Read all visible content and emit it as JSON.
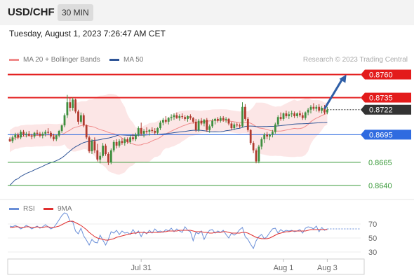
{
  "header": {
    "pair": "USD/CHF",
    "timeframe": "30 MIN"
  },
  "timestamp": "Tuesday, August 1, 2023 7:26:47 AM CET",
  "credit": "Research © 2023 Trading Central",
  "legend": [
    {
      "label": "MA 20 + Bollinger Bands",
      "color": "#f08c8c"
    },
    {
      "label": "MA 50",
      "color": "#2f5597"
    }
  ],
  "rsi_legend": [
    {
      "label": "RSI",
      "color": "#6a8fd8"
    },
    {
      "label": "9MA",
      "color": "#e03030"
    }
  ],
  "chart_data": [
    {
      "type": "candlestick",
      "title": "USD/CHF",
      "ylim": [
        0.8624,
        0.8768
      ],
      "levels": [
        {
          "value": 0.876,
          "label": "0.8760",
          "kind": "resistance",
          "color": "#e31b1b"
        },
        {
          "value": 0.8735,
          "label": "0.8735",
          "kind": "resistance",
          "color": "#e31b1b"
        },
        {
          "value": 0.8722,
          "label": "0.8722",
          "kind": "last",
          "color": "#333333"
        },
        {
          "value": 0.8695,
          "label": "0.8695",
          "kind": "pivot",
          "color": "#2f6be0"
        },
        {
          "value": 0.8665,
          "label": "0.8665",
          "kind": "support",
          "color": "#3a9a3a"
        },
        {
          "value": 0.864,
          "label": "0.8640",
          "kind": "support",
          "color": "#3a9a3a"
        }
      ],
      "x_ticks": [
        {
          "index": 48,
          "label": "Jul 31"
        },
        {
          "index": 100,
          "label": "Aug 1"
        },
        {
          "index": 116,
          "label": "Aug 3"
        }
      ],
      "forecast_arrow": {
        "from_index": 115,
        "from_value": 0.8723,
        "to_index": 123,
        "to_value": 0.876
      },
      "ohlc": [
        [
          0.869,
          0.8692,
          0.8687,
          0.8688
        ],
        [
          0.8688,
          0.8694,
          0.8686,
          0.8692
        ],
        [
          0.8692,
          0.8697,
          0.8689,
          0.8695
        ],
        [
          0.8695,
          0.8697,
          0.869,
          0.8692
        ],
        [
          0.8692,
          0.87,
          0.869,
          0.8698
        ],
        [
          0.8698,
          0.87,
          0.8693,
          0.8695
        ],
        [
          0.8695,
          0.8698,
          0.8692,
          0.8696
        ],
        [
          0.8696,
          0.8699,
          0.8693,
          0.8694
        ],
        [
          0.8694,
          0.8696,
          0.869,
          0.8693
        ],
        [
          0.8693,
          0.8698,
          0.8691,
          0.8697
        ],
        [
          0.8697,
          0.87,
          0.8694,
          0.8696
        ],
        [
          0.8696,
          0.8698,
          0.8692,
          0.8694
        ],
        [
          0.8694,
          0.8698,
          0.8691,
          0.8696
        ],
        [
          0.8696,
          0.87,
          0.8693,
          0.8698
        ],
        [
          0.8698,
          0.8702,
          0.8695,
          0.8697
        ],
        [
          0.8697,
          0.8699,
          0.8691,
          0.8693
        ],
        [
          0.8693,
          0.8696,
          0.8688,
          0.869
        ],
        [
          0.869,
          0.8695,
          0.8688,
          0.8694
        ],
        [
          0.8694,
          0.87,
          0.8692,
          0.8699
        ],
        [
          0.8699,
          0.8706,
          0.8697,
          0.8705
        ],
        [
          0.8705,
          0.8718,
          0.8703,
          0.8716
        ],
        [
          0.8716,
          0.8738,
          0.8713,
          0.873
        ],
        [
          0.873,
          0.8735,
          0.872,
          0.8724
        ],
        [
          0.8724,
          0.8735,
          0.8721,
          0.8733
        ],
        [
          0.8733,
          0.8734,
          0.8718,
          0.872
        ],
        [
          0.872,
          0.8722,
          0.8706,
          0.8709
        ],
        [
          0.8709,
          0.8719,
          0.8707,
          0.8716
        ],
        [
          0.8716,
          0.8718,
          0.8703,
          0.8705
        ],
        [
          0.8705,
          0.8706,
          0.869,
          0.8692
        ],
        [
          0.8692,
          0.8694,
          0.8675,
          0.8677
        ],
        [
          0.8677,
          0.869,
          0.8674,
          0.8688
        ],
        [
          0.8688,
          0.8692,
          0.8675,
          0.8678
        ],
        [
          0.8678,
          0.8685,
          0.8666,
          0.8668
        ],
        [
          0.8668,
          0.8676,
          0.8664,
          0.8672
        ],
        [
          0.8672,
          0.8686,
          0.867,
          0.8683
        ],
        [
          0.8683,
          0.8685,
          0.8672,
          0.8674
        ],
        [
          0.8674,
          0.8676,
          0.8662,
          0.8665
        ],
        [
          0.8665,
          0.868,
          0.8663,
          0.8678
        ],
        [
          0.8678,
          0.8689,
          0.8676,
          0.8687
        ],
        [
          0.8687,
          0.869,
          0.868,
          0.8683
        ],
        [
          0.8683,
          0.869,
          0.8681,
          0.8688
        ],
        [
          0.8688,
          0.8691,
          0.8684,
          0.8686
        ],
        [
          0.8686,
          0.8692,
          0.8683,
          0.869
        ],
        [
          0.869,
          0.8692,
          0.8685,
          0.8687
        ],
        [
          0.8687,
          0.8694,
          0.8685,
          0.8692
        ],
        [
          0.8692,
          0.8696,
          0.8688,
          0.869
        ],
        [
          0.869,
          0.8697,
          0.8688,
          0.8695
        ],
        [
          0.8695,
          0.8704,
          0.8693,
          0.8702
        ],
        [
          0.8702,
          0.8708,
          0.8694,
          0.8696
        ],
        [
          0.8696,
          0.8701,
          0.8692,
          0.8699
        ],
        [
          0.8699,
          0.8703,
          0.8696,
          0.8698
        ],
        [
          0.8698,
          0.8701,
          0.8694,
          0.87
        ],
        [
          0.87,
          0.8703,
          0.8697,
          0.8699
        ],
        [
          0.8699,
          0.8702,
          0.8695,
          0.8697
        ],
        [
          0.8697,
          0.8703,
          0.8695,
          0.8702
        ],
        [
          0.8702,
          0.871,
          0.87,
          0.8708
        ],
        [
          0.8708,
          0.8713,
          0.8705,
          0.8711
        ],
        [
          0.8711,
          0.8715,
          0.8707,
          0.8709
        ],
        [
          0.8709,
          0.8714,
          0.8706,
          0.8713
        ],
        [
          0.8713,
          0.8717,
          0.871,
          0.8714
        ],
        [
          0.8714,
          0.8718,
          0.8711,
          0.8716
        ],
        [
          0.8716,
          0.8719,
          0.8712,
          0.8713
        ],
        [
          0.8713,
          0.8717,
          0.871,
          0.8715
        ],
        [
          0.8715,
          0.8718,
          0.8712,
          0.8714
        ],
        [
          0.8714,
          0.8716,
          0.871,
          0.8712
        ],
        [
          0.8712,
          0.8716,
          0.8709,
          0.8715
        ],
        [
          0.8715,
          0.8717,
          0.8711,
          0.8713
        ],
        [
          0.8713,
          0.8714,
          0.8707,
          0.8709
        ],
        [
          0.8709,
          0.8712,
          0.8698,
          0.87
        ],
        [
          0.87,
          0.8712,
          0.8698,
          0.871
        ],
        [
          0.871,
          0.8713,
          0.8705,
          0.8707
        ],
        [
          0.8707,
          0.8712,
          0.8704,
          0.8711
        ],
        [
          0.8711,
          0.8713,
          0.8698,
          0.87
        ],
        [
          0.87,
          0.8706,
          0.8697,
          0.8704
        ],
        [
          0.8704,
          0.8712,
          0.8702,
          0.871
        ],
        [
          0.871,
          0.8713,
          0.8706,
          0.8712
        ],
        [
          0.8712,
          0.8714,
          0.8708,
          0.871
        ],
        [
          0.871,
          0.8715,
          0.8708,
          0.8713
        ],
        [
          0.8713,
          0.8715,
          0.8709,
          0.8711
        ],
        [
          0.8711,
          0.8714,
          0.8708,
          0.8712
        ],
        [
          0.8712,
          0.8713,
          0.8705,
          0.8707
        ],
        [
          0.8707,
          0.8709,
          0.87,
          0.8702
        ],
        [
          0.8702,
          0.8708,
          0.87,
          0.8706
        ],
        [
          0.8706,
          0.8708,
          0.8703,
          0.8705
        ],
        [
          0.8705,
          0.8707,
          0.8702,
          0.8704
        ],
        [
          0.8704,
          0.873,
          0.8703,
          0.8725
        ],
        [
          0.8725,
          0.8728,
          0.871,
          0.8712
        ],
        [
          0.8712,
          0.8714,
          0.8698,
          0.87
        ],
        [
          0.87,
          0.8701,
          0.8684,
          0.8686
        ],
        [
          0.8686,
          0.8688,
          0.8675,
          0.8678
        ],
        [
          0.8678,
          0.868,
          0.8664,
          0.8666
        ],
        [
          0.8666,
          0.8684,
          0.8664,
          0.8682
        ],
        [
          0.8682,
          0.8692,
          0.8679,
          0.869
        ],
        [
          0.869,
          0.8697,
          0.8686,
          0.8695
        ],
        [
          0.8695,
          0.8698,
          0.869,
          0.8693
        ],
        [
          0.8693,
          0.8696,
          0.8689,
          0.8695
        ],
        [
          0.8695,
          0.87,
          0.8692,
          0.8698
        ],
        [
          0.8698,
          0.8708,
          0.8696,
          0.8706
        ],
        [
          0.8706,
          0.8716,
          0.8704,
          0.8714
        ],
        [
          0.8714,
          0.8719,
          0.871,
          0.8712
        ],
        [
          0.8712,
          0.8719,
          0.871,
          0.8718
        ],
        [
          0.8718,
          0.8721,
          0.8713,
          0.8715
        ],
        [
          0.8715,
          0.872,
          0.8712,
          0.8717
        ],
        [
          0.8717,
          0.8721,
          0.8714,
          0.8718
        ],
        [
          0.8718,
          0.872,
          0.8713,
          0.8715
        ],
        [
          0.8715,
          0.8719,
          0.8713,
          0.8718
        ],
        [
          0.8718,
          0.8721,
          0.8714,
          0.8716
        ],
        [
          0.8716,
          0.8719,
          0.8711,
          0.8713
        ],
        [
          0.8713,
          0.872,
          0.8711,
          0.8719
        ],
        [
          0.8719,
          0.8724,
          0.8716,
          0.8722
        ],
        [
          0.8722,
          0.8727,
          0.8718,
          0.8725
        ],
        [
          0.8725,
          0.8729,
          0.8721,
          0.8723
        ],
        [
          0.8723,
          0.8727,
          0.872,
          0.8725
        ],
        [
          0.8725,
          0.8728,
          0.8719,
          0.8721
        ],
        [
          0.8721,
          0.8726,
          0.8718,
          0.8724
        ],
        [
          0.8724,
          0.8727,
          0.8717,
          0.8719
        ],
        [
          0.8719,
          0.8725,
          0.8717,
          0.8722
        ]
      ]
    },
    {
      "type": "line",
      "title": "RSI",
      "ylim": [
        20,
        80
      ],
      "y_ticks": [
        70,
        50,
        30
      ],
      "series": [
        {
          "name": "RSI",
          "color": "#6a8fd8",
          "values": [
            67,
            66,
            68,
            66,
            63,
            65,
            68,
            66,
            63,
            65,
            67,
            64,
            66,
            69,
            66,
            63,
            65,
            70,
            76,
            82,
            86,
            84,
            74,
            73,
            60,
            56,
            64,
            53,
            47,
            40,
            48,
            44,
            43,
            54,
            47,
            40,
            48,
            59,
            57,
            61,
            55,
            60,
            57,
            58,
            55,
            62,
            56,
            60,
            52,
            59,
            56,
            61,
            57,
            63,
            59,
            60,
            58,
            62,
            60,
            64,
            59,
            63,
            60,
            58,
            66,
            61,
            59,
            46,
            58,
            56,
            60,
            48,
            56,
            61,
            62,
            57,
            60,
            58,
            61,
            55,
            50,
            57,
            54,
            57,
            62,
            65,
            52,
            48,
            41,
            35,
            46,
            52,
            55,
            49,
            52,
            58,
            63,
            64,
            57,
            62,
            59,
            61,
            60,
            61,
            59,
            60,
            62,
            57,
            64,
            66,
            65,
            63,
            67,
            59,
            65,
            61,
            63
          ]
        },
        {
          "name": "9MA",
          "color": "#e03030",
          "values": [
            65,
            65,
            66,
            66,
            65,
            65,
            66,
            66,
            65,
            65,
            66,
            65,
            65,
            66,
            66,
            65,
            65,
            66,
            67,
            69,
            71,
            73,
            74,
            74,
            72,
            70,
            68,
            65,
            62,
            58,
            55,
            52,
            50,
            49,
            48,
            47,
            47,
            48,
            49,
            51,
            52,
            53,
            54,
            55,
            56,
            57,
            57,
            58,
            58,
            58,
            57,
            58,
            58,
            58,
            58,
            58,
            59,
            59,
            60,
            60,
            60,
            60,
            61,
            61,
            61,
            61,
            61,
            60,
            59,
            59,
            59,
            58,
            58,
            57,
            57,
            58,
            58,
            58,
            59,
            59,
            58,
            57,
            57,
            57,
            57,
            58,
            58,
            57,
            55,
            53,
            51,
            50,
            49,
            49,
            49,
            50,
            52,
            54,
            56,
            57,
            58,
            59,
            59,
            60,
            60,
            60,
            60,
            60,
            60,
            61,
            62,
            62,
            62,
            62,
            62,
            62,
            62
          ]
        }
      ],
      "x_ticks": [
        {
          "index": 48,
          "label": "Jul 31"
        },
        {
          "index": 100,
          "label": "Aug 1"
        },
        {
          "index": 116,
          "label": "Aug 3"
        }
      ]
    }
  ]
}
